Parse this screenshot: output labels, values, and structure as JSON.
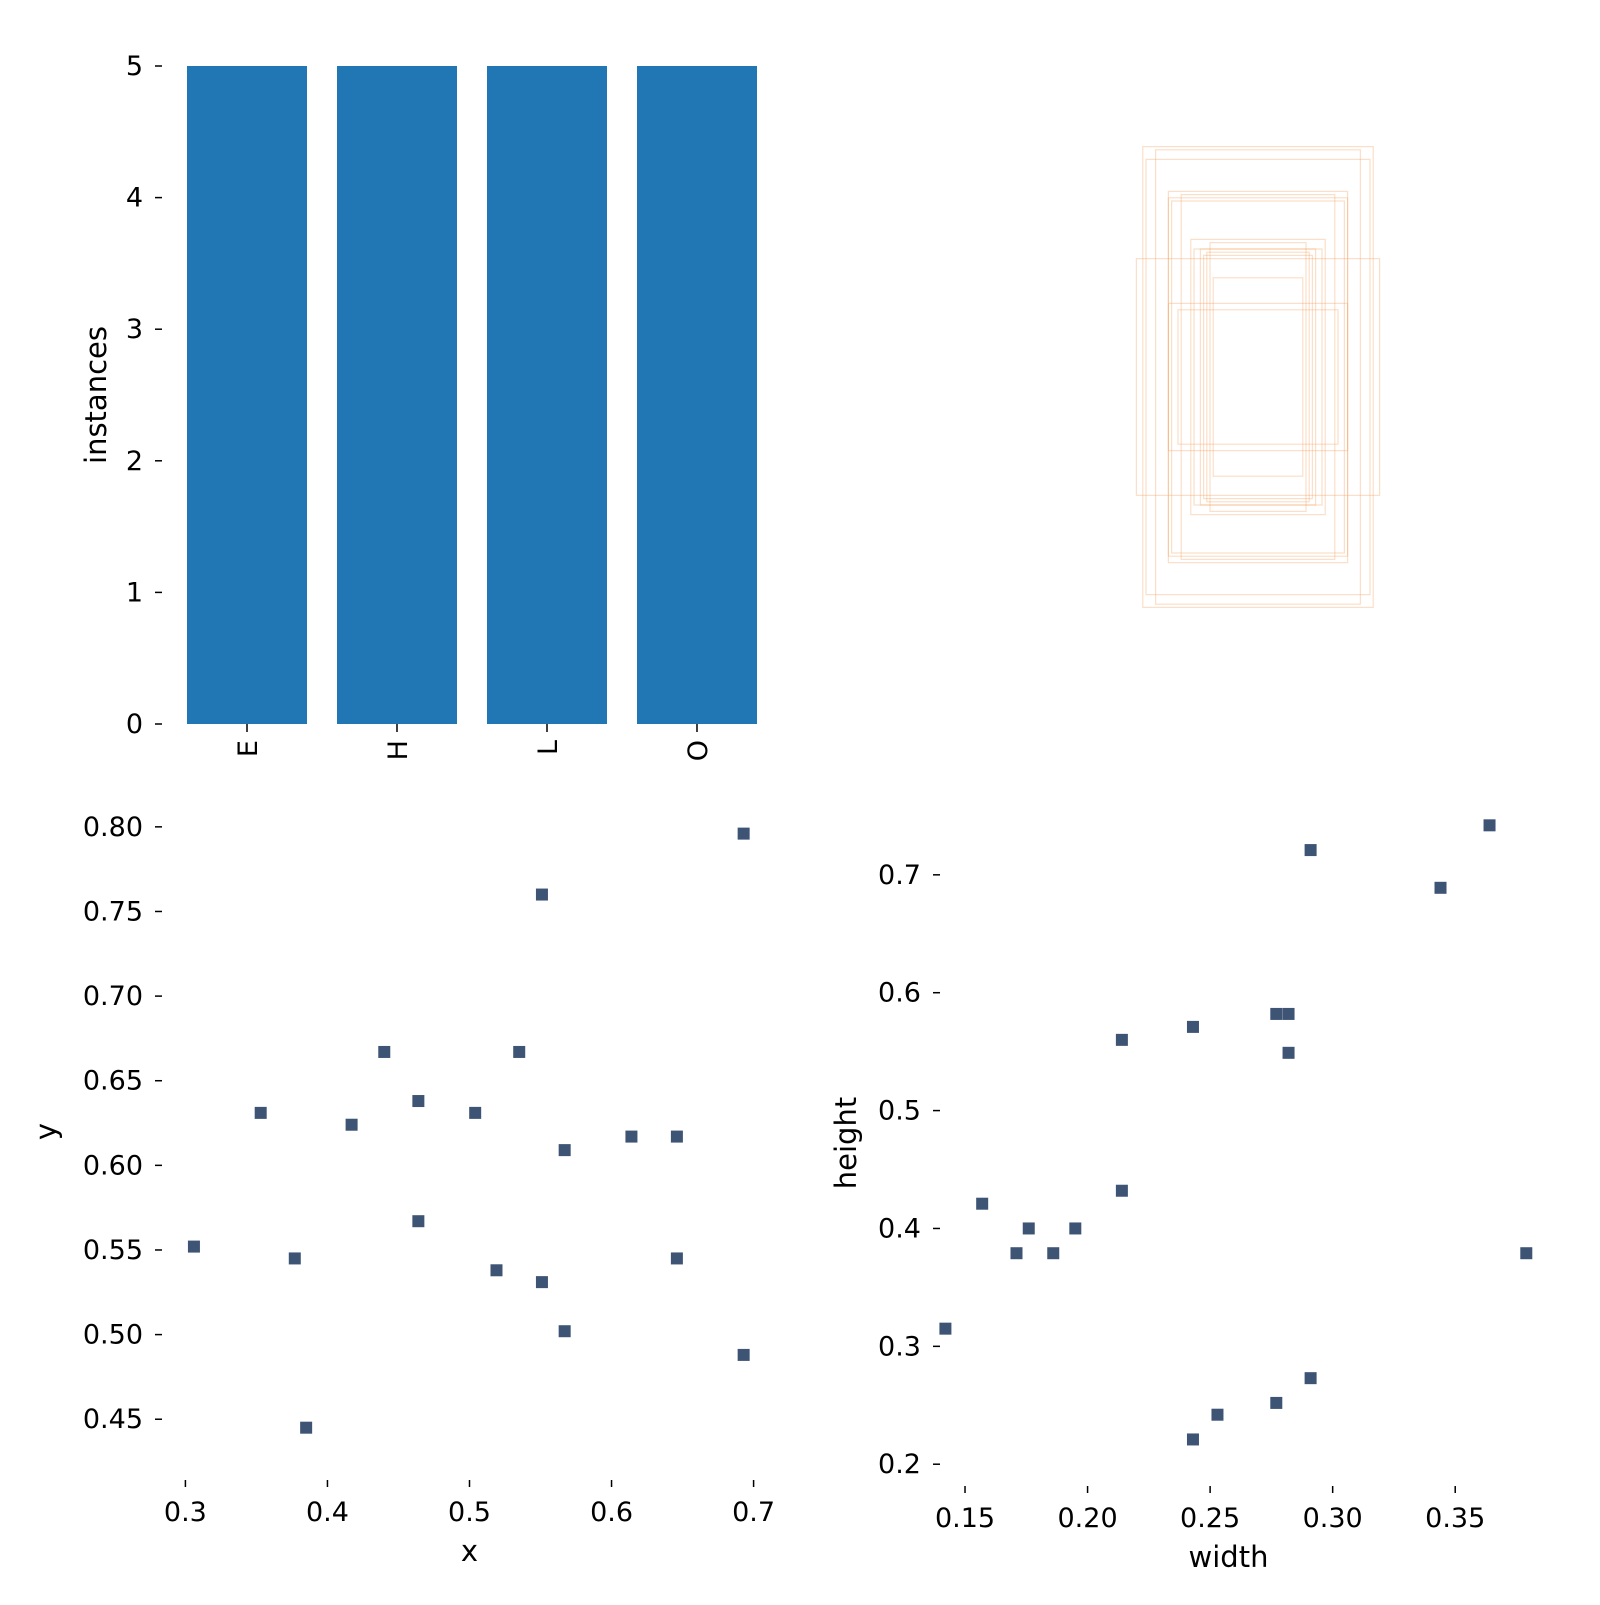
{
  "colors": {
    "bar": "#2077b4",
    "point": "#3d5475",
    "box_stroke": "#f4a261",
    "tick": "#000000"
  },
  "chart_data": [
    {
      "type": "bar",
      "categories": [
        "E",
        "H",
        "L",
        "O"
      ],
      "values": [
        5,
        5,
        5,
        5
      ],
      "title": "",
      "xlabel": "",
      "ylabel": "instances",
      "ylim": [
        0,
        5
      ],
      "yticks": [
        "0",
        "1",
        "2",
        "3",
        "4",
        "5"
      ],
      "grid": false
    },
    {
      "type": "boxes",
      "description_free": true,
      "boxes": [
        {
          "w": 0.36,
          "h": 0.72
        },
        {
          "w": 0.35,
          "h": 0.68
        },
        {
          "w": 0.32,
          "h": 0.71
        },
        {
          "w": 0.28,
          "h": 0.56
        },
        {
          "w": 0.28,
          "h": 0.58
        },
        {
          "w": 0.27,
          "h": 0.55
        },
        {
          "w": 0.24,
          "h": 0.57
        },
        {
          "w": 0.38,
          "h": 0.37
        },
        {
          "w": 0.28,
          "h": 0.23
        },
        {
          "w": 0.21,
          "h": 0.43
        },
        {
          "w": 0.2,
          "h": 0.4
        },
        {
          "w": 0.18,
          "h": 0.4
        },
        {
          "w": 0.17,
          "h": 0.38
        },
        {
          "w": 0.16,
          "h": 0.39
        },
        {
          "w": 0.15,
          "h": 0.42
        },
        {
          "w": 0.14,
          "h": 0.31
        },
        {
          "w": 0.25,
          "h": 0.21
        }
      ]
    },
    {
      "type": "scatter",
      "xlabel": "x",
      "ylabel": "y",
      "xlim": [
        0.28,
        0.72
      ],
      "ylim": [
        0.42,
        0.82
      ],
      "xticks": [
        0.3,
        0.4,
        0.5,
        0.6,
        0.7
      ],
      "xtick_labels": [
        "0.3",
        "0.4",
        "0.5",
        "0.6",
        "0.7"
      ],
      "yticks": [
        0.45,
        0.5,
        0.55,
        0.6,
        0.65,
        0.7,
        0.75,
        0.8
      ],
      "ytick_labels": [
        "0.45",
        "0.50",
        "0.55",
        "0.60",
        "0.65",
        "0.70",
        "0.75",
        "0.80"
      ],
      "points": [
        [
          0.693,
          0.796
        ],
        [
          0.551,
          0.76
        ],
        [
          0.44,
          0.667
        ],
        [
          0.535,
          0.667
        ],
        [
          0.464,
          0.638
        ],
        [
          0.353,
          0.631
        ],
        [
          0.504,
          0.631
        ],
        [
          0.417,
          0.624
        ],
        [
          0.567,
          0.609
        ],
        [
          0.614,
          0.617
        ],
        [
          0.646,
          0.617
        ],
        [
          0.464,
          0.567
        ],
        [
          0.306,
          0.552
        ],
        [
          0.377,
          0.545
        ],
        [
          0.646,
          0.545
        ],
        [
          0.519,
          0.538
        ],
        [
          0.551,
          0.531
        ],
        [
          0.567,
          0.502
        ],
        [
          0.693,
          0.488
        ],
        [
          0.385,
          0.445
        ]
      ]
    },
    {
      "type": "scatter",
      "xlabel": "width",
      "ylabel": "height",
      "xlim": [
        0.13,
        0.385
      ],
      "ylim": [
        0.19,
        0.755
      ],
      "xticks": [
        0.15,
        0.2,
        0.25,
        0.3,
        0.35
      ],
      "xtick_labels": [
        "0.15",
        "0.20",
        "0.25",
        "0.30",
        "0.35"
      ],
      "yticks": [
        0.2,
        0.3,
        0.4,
        0.5,
        0.6,
        0.7
      ],
      "ytick_labels": [
        "0.2",
        "0.3",
        "0.4",
        "0.5",
        "0.6",
        "0.7"
      ],
      "points": [
        [
          0.364,
          0.742
        ],
        [
          0.291,
          0.721
        ],
        [
          0.344,
          0.689
        ],
        [
          0.277,
          0.582
        ],
        [
          0.282,
          0.582
        ],
        [
          0.243,
          0.571
        ],
        [
          0.214,
          0.56
        ],
        [
          0.282,
          0.549
        ],
        [
          0.214,
          0.432
        ],
        [
          0.157,
          0.421
        ],
        [
          0.176,
          0.4
        ],
        [
          0.195,
          0.4
        ],
        [
          0.171,
          0.379
        ],
        [
          0.186,
          0.379
        ],
        [
          0.379,
          0.379
        ],
        [
          0.142,
          0.315
        ],
        [
          0.291,
          0.273
        ],
        [
          0.277,
          0.252
        ],
        [
          0.253,
          0.242
        ],
        [
          0.243,
          0.221
        ]
      ]
    }
  ]
}
